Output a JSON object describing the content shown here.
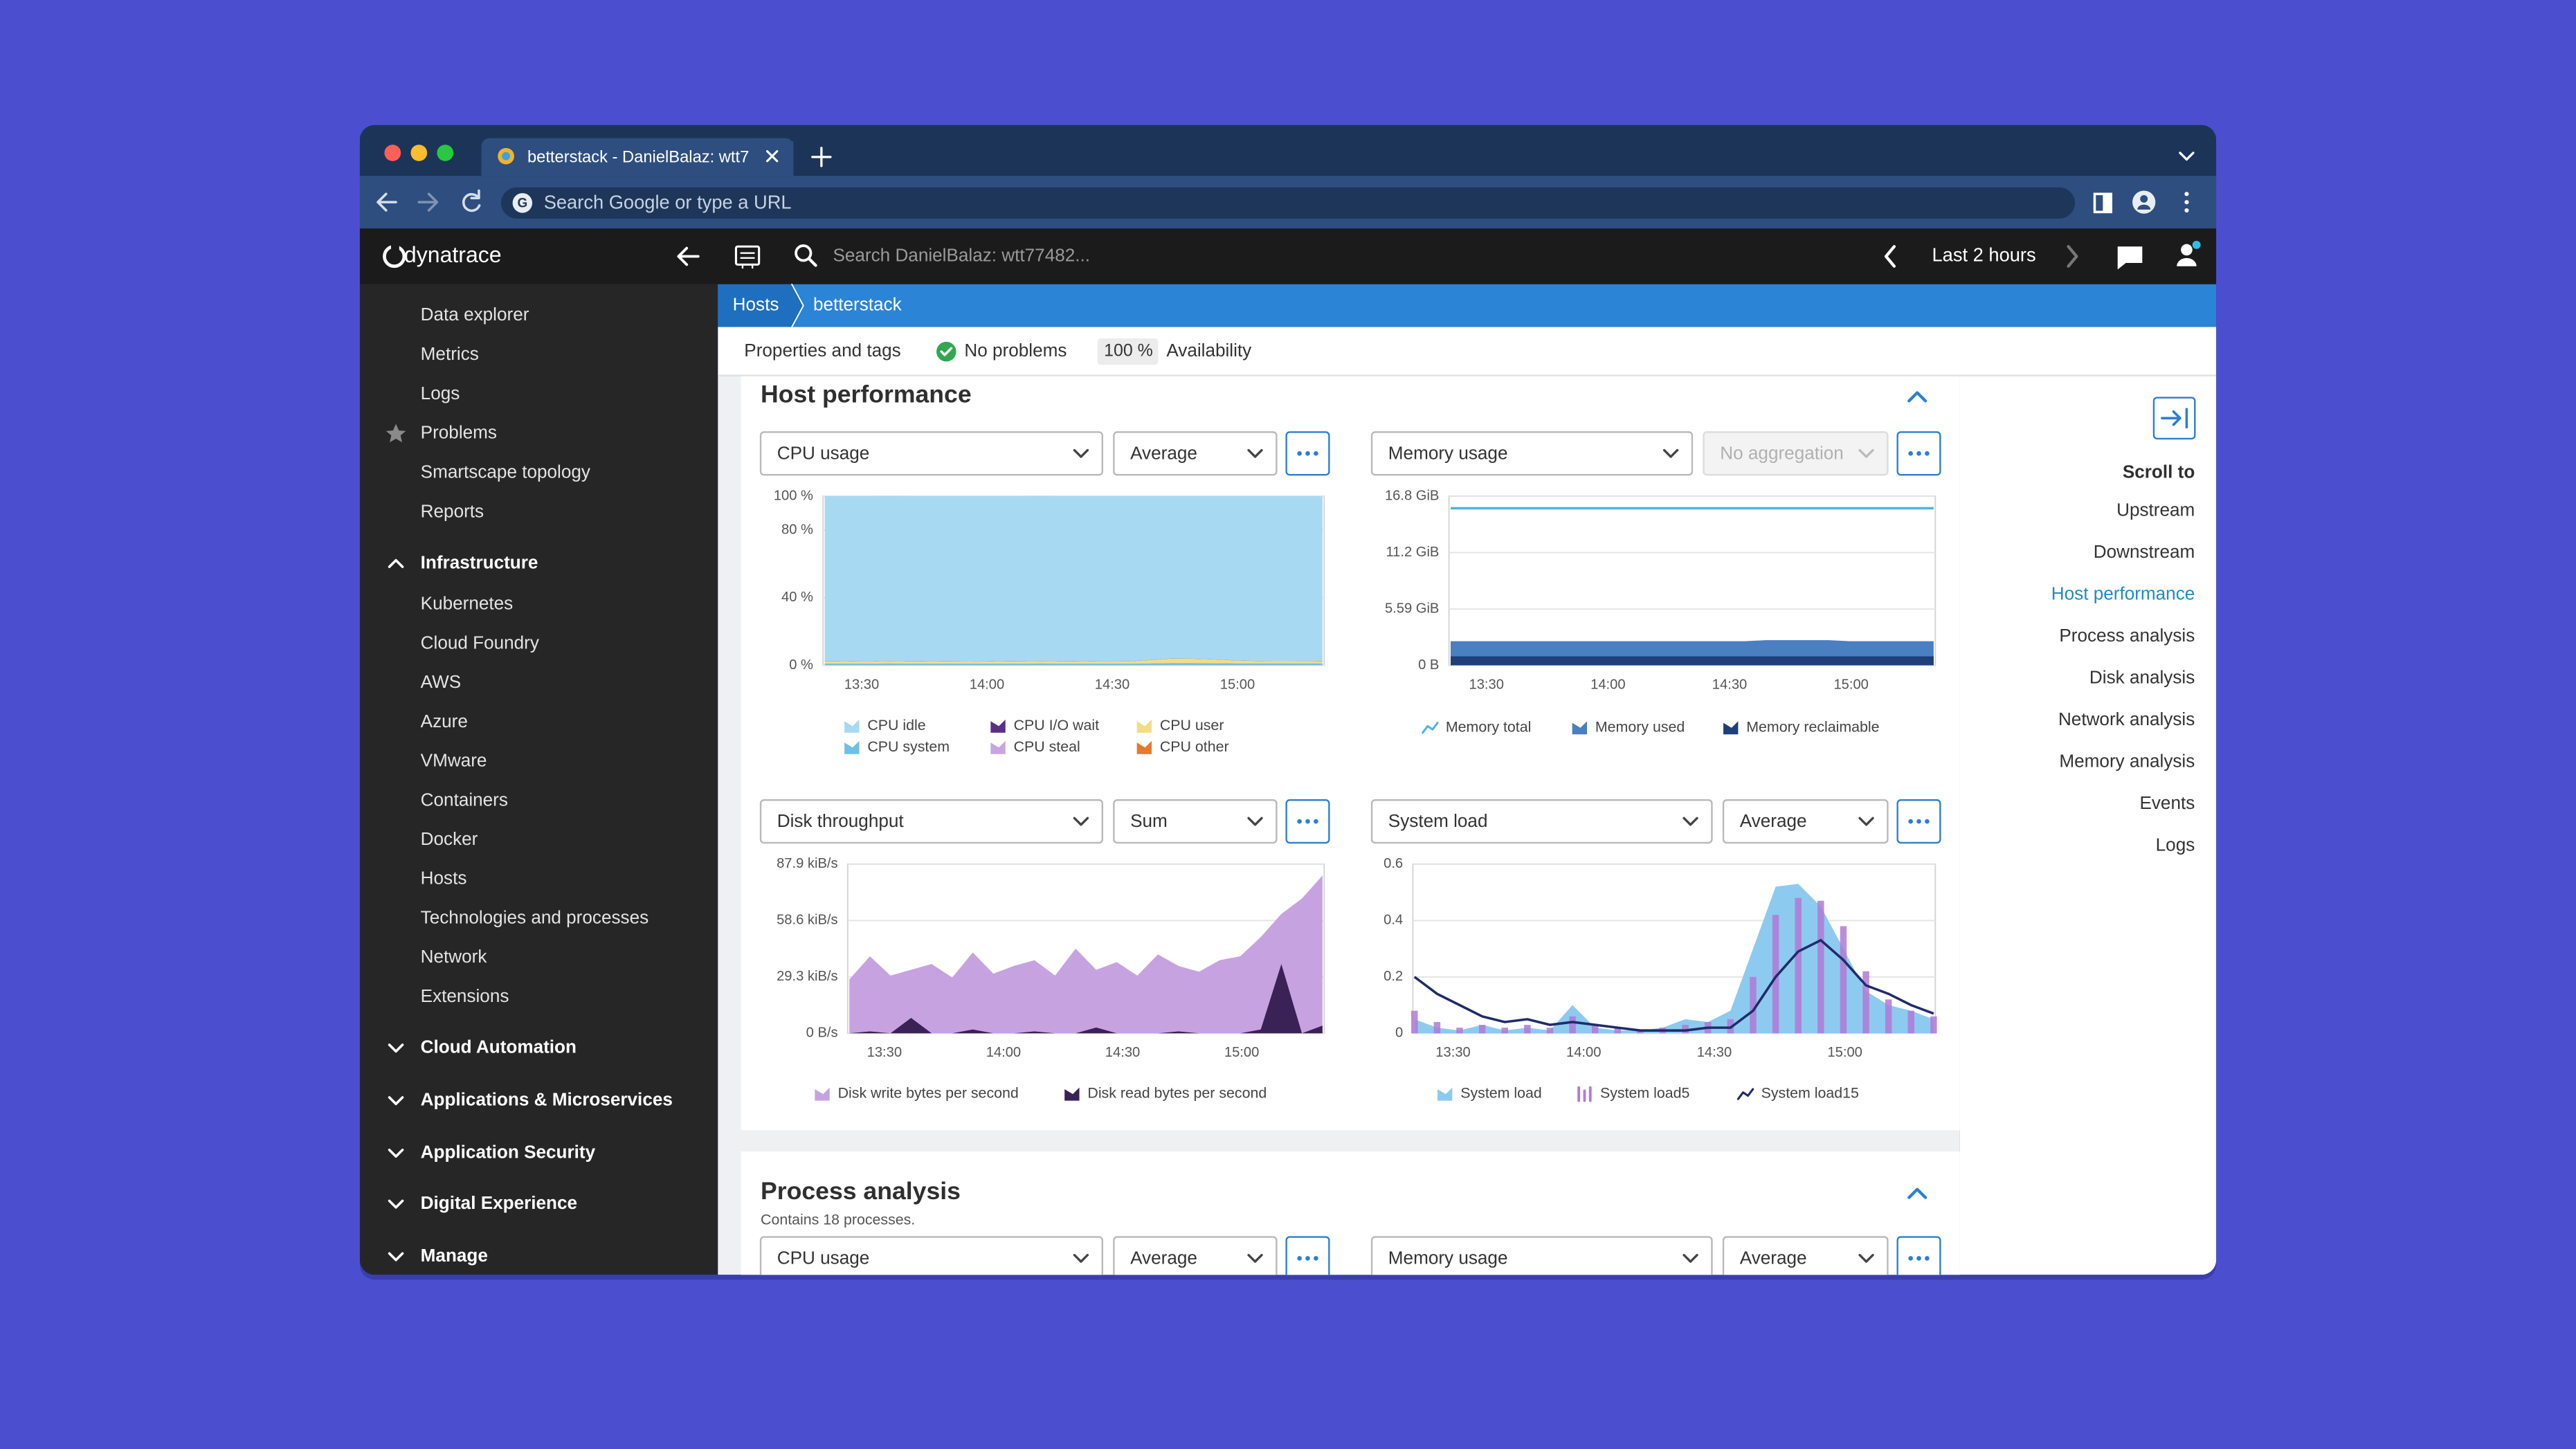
{
  "browser": {
    "tab_title": "betterstack - DanielBalaz: wtt7",
    "address_placeholder": "Search Google or type a URL"
  },
  "app_header": {
    "brand": "dynatrace",
    "search_placeholder": "Search DanielBalaz: wtt77482...",
    "timeframe": "Last 2 hours"
  },
  "sidebar": {
    "top_items": [
      "Data explorer",
      "Metrics",
      "Logs",
      "Problems",
      "Smartscape topology",
      "Reports"
    ],
    "infrastructure": {
      "label": "Infrastructure",
      "items": [
        "Kubernetes",
        "Cloud Foundry",
        "AWS",
        "Azure",
        "VMware",
        "Containers",
        "Docker",
        "Hosts",
        "Technologies and processes",
        "Network",
        "Extensions"
      ]
    },
    "collapsed_groups": [
      "Cloud Automation",
      "Applications & Microservices",
      "Application Security",
      "Digital Experience",
      "Manage"
    ]
  },
  "breadcrumb": [
    "Hosts",
    "betterstack"
  ],
  "subheader": {
    "properties": "Properties and tags",
    "problems": "No problems",
    "availability_value": "100 %",
    "availability_label": "Availability"
  },
  "host_performance": {
    "title": "Host performance",
    "charts": [
      {
        "type": "stacked_area",
        "metric": "CPU usage",
        "aggregation": "Average",
        "ylim": [
          0,
          100
        ],
        "yticks": [
          {
            "value": 0,
            "label": "0 %"
          },
          {
            "value": 40,
            "label": "40 %"
          },
          {
            "value": 80,
            "label": "80 %"
          },
          {
            "value": 100,
            "label": "100 %"
          }
        ],
        "xticks": [
          "13:30",
          "14:00",
          "14:30",
          "15:00"
        ],
        "series": [
          {
            "name": "CPU idle",
            "color": "#a8d9f3",
            "style": "area",
            "values": [
              97.6,
              97.5,
              97.7,
              97.4,
              97.6,
              97.5,
              97.6,
              97.7,
              97.5,
              97.6,
              97.4,
              97.6,
              97.5,
              97.7,
              97.6,
              96.8,
              95.9,
              96.0,
              96.4,
              97.0,
              97.3,
              97.4,
              97.5,
              97.3
            ]
          },
          {
            "name": "CPU I/O wait",
            "color": "#5b2f86",
            "style": "area",
            "values": [
              0.1,
              0.1,
              0.1,
              0.1,
              0.1,
              0.1,
              0.1,
              0.1,
              0.1,
              0.1,
              0.1,
              0.1,
              0.1,
              0.1,
              0.1,
              0.1,
              0.1,
              0.1,
              0.1,
              0.1,
              0.1,
              0.1,
              0.1,
              0.1
            ]
          },
          {
            "name": "CPU user",
            "color": "#f4dc85",
            "style": "area",
            "values": [
              1.2,
              1.3,
              1.1,
              1.4,
              1.2,
              1.3,
              1.2,
              1.1,
              1.3,
              1.2,
              1.4,
              1.2,
              1.3,
              1.1,
              1.2,
              1.9,
              2.6,
              2.5,
              2.2,
              1.7,
              1.4,
              1.3,
              1.2,
              1.4
            ]
          },
          {
            "name": "CPU system",
            "color": "#6fc0e8",
            "style": "area",
            "values": [
              0.9,
              0.9,
              0.9,
              1.0,
              0.9,
              0.9,
              0.9,
              0.9,
              0.9,
              0.9,
              1.0,
              0.9,
              0.9,
              0.9,
              0.9,
              1.0,
              1.2,
              1.2,
              1.1,
              1.0,
              1.0,
              1.0,
              1.0,
              1.0
            ]
          },
          {
            "name": "CPU steal",
            "color": "#c9a5e2",
            "style": "area",
            "values": [
              0.1,
              0.1,
              0.1,
              0.1,
              0.1,
              0.1,
              0.1,
              0.1,
              0.1,
              0.1,
              0.1,
              0.1,
              0.1,
              0.1,
              0.1,
              0.1,
              0.1,
              0.1,
              0.1,
              0.1,
              0.1,
              0.1,
              0.1,
              0.1
            ]
          },
          {
            "name": "CPU other",
            "color": "#e7792b",
            "style": "area",
            "values": [
              0.1,
              0.1,
              0.1,
              0.1,
              0.1,
              0.1,
              0.1,
              0.1,
              0.1,
              0.1,
              0.1,
              0.1,
              0.1,
              0.1,
              0.1,
              0.1,
              0.1,
              0.1,
              0.1,
              0.1,
              0.1,
              0.1,
              0.1,
              0.1
            ]
          }
        ]
      },
      {
        "type": "area",
        "metric": "Memory usage",
        "aggregation": "No aggregation",
        "aggregation_disabled": true,
        "ylim": [
          0,
          16.8
        ],
        "yticks": [
          {
            "value": 0,
            "label": "0 B"
          },
          {
            "value": 5.59,
            "label": "5.59 GiB"
          },
          {
            "value": 11.2,
            "label": "11.2 GiB"
          },
          {
            "value": 16.8,
            "label": "16.8 GiB"
          }
        ],
        "xticks": [
          "13:30",
          "14:00",
          "14:30",
          "15:00"
        ],
        "series": [
          {
            "name": "Memory total",
            "color": "#4fb3e0",
            "style": "line",
            "values": [
              15.6,
              15.6,
              15.6,
              15.6,
              15.6,
              15.6,
              15.6,
              15.6,
              15.6,
              15.6,
              15.6,
              15.6,
              15.6,
              15.6,
              15.6,
              15.6,
              15.6,
              15.6,
              15.6,
              15.6,
              15.6,
              15.6,
              15.6,
              15.6
            ]
          },
          {
            "name": "Memory used",
            "color": "#4a7fc1",
            "style": "area",
            "values": [
              2.4,
              2.4,
              2.4,
              2.4,
              2.4,
              2.4,
              2.4,
              2.4,
              2.4,
              2.4,
              2.4,
              2.4,
              2.4,
              2.4,
              2.4,
              2.5,
              2.5,
              2.5,
              2.5,
              2.4,
              2.4,
              2.4,
              2.4,
              2.4
            ]
          },
          {
            "name": "Memory reclaimable",
            "color": "#1f3f7a",
            "style": "area",
            "values": [
              0.9,
              0.9,
              0.9,
              0.9,
              0.9,
              0.9,
              0.9,
              0.9,
              0.9,
              0.9,
              0.9,
              0.9,
              0.9,
              0.9,
              0.9,
              0.9,
              0.9,
              0.9,
              0.9,
              0.9,
              0.9,
              0.9,
              0.9,
              0.9
            ]
          }
        ]
      },
      {
        "type": "area",
        "metric": "Disk throughput",
        "aggregation": "Sum",
        "ylim": [
          0,
          87.9
        ],
        "yticks": [
          {
            "value": 0,
            "label": "0 B/s"
          },
          {
            "value": 29.3,
            "label": "29.3 kiB/s"
          },
          {
            "value": 58.6,
            "label": "58.6 kiB/s"
          },
          {
            "value": 87.9,
            "label": "87.9 kiB/s"
          }
        ],
        "xticks": [
          "13:30",
          "14:00",
          "14:30",
          "15:00"
        ],
        "series": [
          {
            "name": "Disk write bytes per second",
            "color": "#c6a3e0",
            "style": "area",
            "values": [
              28,
              40,
              30,
              33,
              36,
              29,
              42,
              31,
              35,
              38,
              30,
              44,
              33,
              37,
              30,
              41,
              35,
              32,
              38,
              40,
              50,
              62,
              70,
              82
            ]
          },
          {
            "name": "Disk read bytes per second",
            "color": "#3a2156",
            "style": "area",
            "values": [
              0,
              1,
              0,
              8,
              0,
              0,
              2,
              0,
              0,
              1,
              0,
              0,
              3,
              0,
              0,
              0,
              1,
              0,
              0,
              0,
              2,
              36,
              0,
              4
            ]
          }
        ]
      },
      {
        "type": "area",
        "metric": "System load",
        "aggregation": "Average",
        "ylim": [
          0,
          0.6
        ],
        "yticks": [
          0,
          0.2,
          0.4,
          0.6
        ],
        "xticks": [
          "13:30",
          "14:00",
          "14:30",
          "15:00"
        ],
        "series": [
          {
            "name": "System load",
            "color": "#8ccbef",
            "style": "area",
            "values": [
              0.05,
              0.02,
              0.01,
              0.03,
              0.01,
              0.02,
              0.01,
              0.1,
              0.02,
              0.01,
              0.01,
              0.02,
              0.05,
              0.04,
              0.08,
              0.3,
              0.52,
              0.53,
              0.45,
              0.3,
              0.15,
              0.1,
              0.08,
              0.05
            ]
          },
          {
            "name": "System load5",
            "color": "#b279d6",
            "style": "bars",
            "values": [
              0.08,
              0.04,
              0.02,
              0.03,
              0.02,
              0.03,
              0.02,
              0.06,
              0.03,
              0.02,
              0.01,
              0.02,
              0.03,
              0.04,
              0.05,
              0.2,
              0.42,
              0.48,
              0.47,
              0.38,
              0.22,
              0.12,
              0.08,
              0.06
            ]
          },
          {
            "name": "System load15",
            "color": "#1f2c6b",
            "style": "line",
            "values": [
              0.2,
              0.14,
              0.1,
              0.06,
              0.04,
              0.05,
              0.03,
              0.04,
              0.03,
              0.02,
              0.01,
              0.01,
              0.01,
              0.02,
              0.02,
              0.08,
              0.2,
              0.29,
              0.33,
              0.26,
              0.17,
              0.14,
              0.1,
              0.07
            ]
          }
        ]
      }
    ]
  },
  "process_analysis": {
    "title": "Process analysis",
    "subtitle": "Contains 18 processes.",
    "controls": [
      {
        "metric": "CPU usage",
        "aggregation": "Average"
      },
      {
        "metric": "Memory usage",
        "aggregation": "Average"
      }
    ]
  },
  "scroll_to": {
    "title": "Scroll to",
    "links": [
      {
        "label": "Upstream"
      },
      {
        "label": "Downstream"
      },
      {
        "label": "Host performance",
        "active": true
      },
      {
        "label": "Process analysis"
      },
      {
        "label": "Disk analysis"
      },
      {
        "label": "Network analysis"
      },
      {
        "label": "Memory analysis"
      },
      {
        "label": "Events"
      },
      {
        "label": "Logs"
      }
    ]
  }
}
